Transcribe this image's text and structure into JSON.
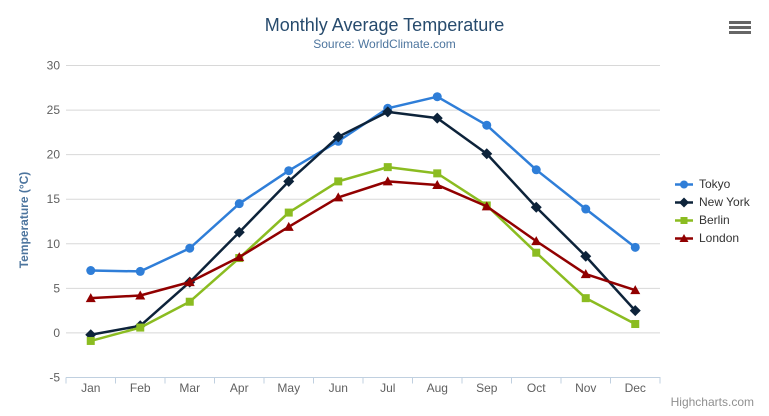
{
  "header": {
    "title": "Monthly Average Temperature",
    "subtitle": "Source: WorldClimate.com"
  },
  "credit_label": "Highcharts.com",
  "menu_icon": "hamburger-icon",
  "colors": {
    "title": "#274b6d",
    "subtitle": "#4d759e",
    "axis_label": "#606060",
    "gridline": "#d8d8d8",
    "axis_line": "#c0d0e0",
    "legend_text": "#333333",
    "menu_icon": "#666666",
    "credit": "#909090",
    "background": "#ffffff"
  },
  "chart_data": {
    "type": "line",
    "title": "Monthly Average Temperature",
    "subtitle": "Source: WorldClimate.com",
    "xlabel": "",
    "ylabel": "Temperature (°C)",
    "ylim": [
      -5,
      30
    ],
    "ytick_step": 5,
    "yticks": [
      30,
      25,
      20,
      15,
      10,
      5,
      0,
      -5
    ],
    "grid": "horizontal-only",
    "legend_position": "right",
    "categories": [
      "Jan",
      "Feb",
      "Mar",
      "Apr",
      "May",
      "Jun",
      "Jul",
      "Aug",
      "Sep",
      "Oct",
      "Nov",
      "Dec"
    ],
    "series": [
      {
        "name": "Tokyo",
        "color": "#2f7ed8",
        "marker": "circle",
        "values": [
          7.0,
          6.9,
          9.5,
          14.5,
          18.2,
          21.5,
          25.2,
          26.5,
          23.3,
          18.3,
          13.9,
          9.6
        ]
      },
      {
        "name": "New York",
        "color": "#0d233a",
        "marker": "diamond",
        "values": [
          -0.2,
          0.8,
          5.7,
          11.3,
          17.0,
          22.0,
          24.8,
          24.1,
          20.1,
          14.1,
          8.6,
          2.5
        ]
      },
      {
        "name": "Berlin",
        "color": "#8bbc21",
        "marker": "square",
        "values": [
          -0.9,
          0.6,
          3.5,
          8.4,
          13.5,
          17.0,
          18.6,
          17.9,
          14.3,
          9.0,
          3.9,
          1.0
        ]
      },
      {
        "name": "London",
        "color": "#910000",
        "marker": "triangle",
        "values": [
          3.9,
          4.2,
          5.7,
          8.5,
          11.9,
          15.2,
          17.0,
          16.6,
          14.2,
          10.3,
          6.6,
          4.8
        ]
      }
    ]
  }
}
